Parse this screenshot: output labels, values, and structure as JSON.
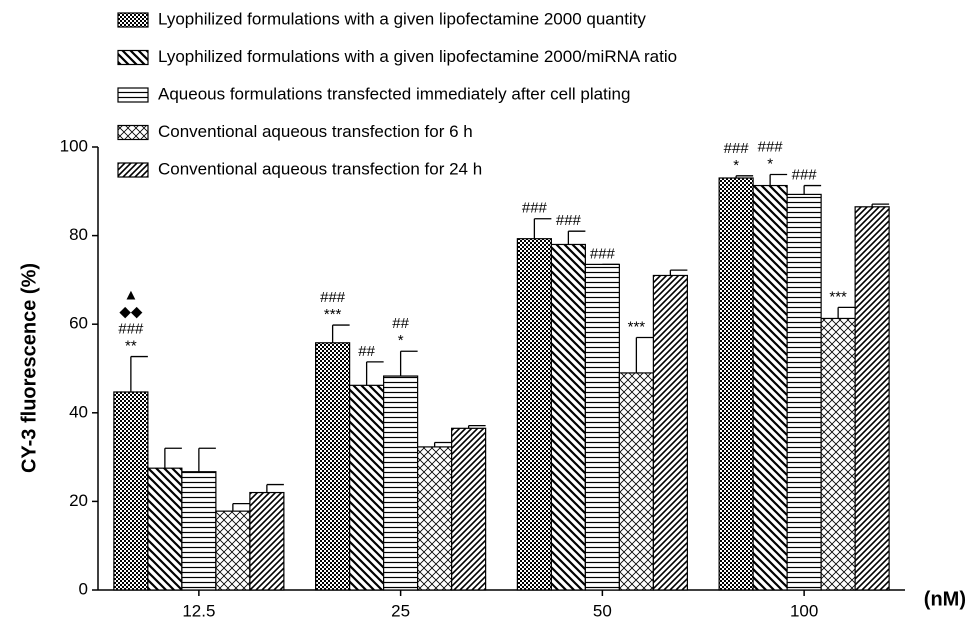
{
  "chart_data": {
    "type": "bar",
    "y_label": "CY-3 fluorescence (%)",
    "x_label": "(nM)",
    "categories": [
      "12.5",
      "25",
      "50",
      "100"
    ],
    "ylim": [
      0,
      100
    ],
    "yticks": [
      0,
      20,
      40,
      60,
      80,
      100
    ],
    "legend": "top-left",
    "series": [
      {
        "name": "Lyophilized formulations with a given lipofectamine 2000 quantity",
        "color": "#000000",
        "pattern": "checker",
        "values": [
          44.7,
          55.8,
          79.3,
          93
        ],
        "errors": [
          8,
          4,
          4.5,
          0.5
        ],
        "annotations": [
          [
            "▲",
            "◆◆",
            "###",
            "**"
          ],
          [
            "###",
            "***"
          ],
          [
            "###"
          ],
          [
            "###",
            "*"
          ]
        ]
      },
      {
        "name": "Lyophilized formulations with a given lipofectamine 2000/miRNA ratio",
        "color": "#000000",
        "pattern": "back-diagonal",
        "values": [
          27.5,
          46.2,
          78,
          91.3
        ],
        "errors": [
          4.5,
          5.3,
          3,
          2.5
        ],
        "annotations": [
          null,
          [
            "##"
          ],
          [
            "###"
          ],
          [
            "###",
            "*"
          ]
        ]
      },
      {
        "name": "Aqueous formulations transfected immediately after cell plating",
        "color": "#000000",
        "pattern": "horizontal",
        "values": [
          26.7,
          48.3,
          73.5,
          89.3
        ],
        "errors": [
          5.3,
          5.6,
          0,
          2
        ],
        "annotations": [
          null,
          [
            "##",
            "*"
          ],
          [
            "###"
          ],
          [
            "###"
          ]
        ]
      },
      {
        "name": "Conventional aqueous transfection for 6 h",
        "color": "#000000",
        "pattern": "crosshatch",
        "values": [
          17.8,
          32.3,
          49,
          61.3
        ],
        "errors": [
          1.7,
          1,
          8,
          2.5
        ],
        "annotations": [
          null,
          null,
          [
            "***"
          ],
          [
            "***"
          ]
        ]
      },
      {
        "name": "Conventional aqueous transfection for 24 h",
        "color": "#000000",
        "pattern": "forward-diagonal",
        "values": [
          22,
          36.5,
          71,
          86.5
        ],
        "errors": [
          1.8,
          0.6,
          1.2,
          0.6
        ],
        "annotations": [
          null,
          null,
          null,
          null
        ]
      }
    ]
  }
}
